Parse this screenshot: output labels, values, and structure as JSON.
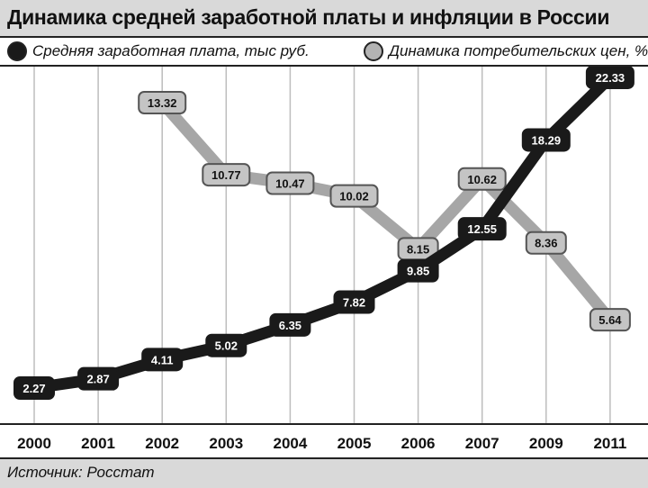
{
  "title": "Динамика средней заработной платы и инфляции в России",
  "source": "Источник: Росстат",
  "colors": {
    "salary": "#1a1a1a",
    "inflation": "#a6a6a6",
    "background": "#ffffff",
    "header": "#d9d9d9"
  },
  "chart_data": {
    "type": "line",
    "categories": [
      "2000",
      "2001",
      "2002",
      "2003",
      "2004",
      "2005",
      "2006",
      "2007",
      "2009",
      "2011"
    ],
    "series": [
      {
        "name": "Средняя заработная плата, тыс руб.",
        "values": [
          2.27,
          2.87,
          4.11,
          5.02,
          6.35,
          7.82,
          9.85,
          12.55,
          18.29,
          22.33
        ]
      },
      {
        "name": "Динамика потребительских цен, %",
        "values": [
          null,
          null,
          13.32,
          10.77,
          10.47,
          10.02,
          8.15,
          10.62,
          8.36,
          5.64
        ]
      }
    ],
    "grid": "vertical",
    "legend_placement": "top",
    "labels": "values on markers"
  }
}
